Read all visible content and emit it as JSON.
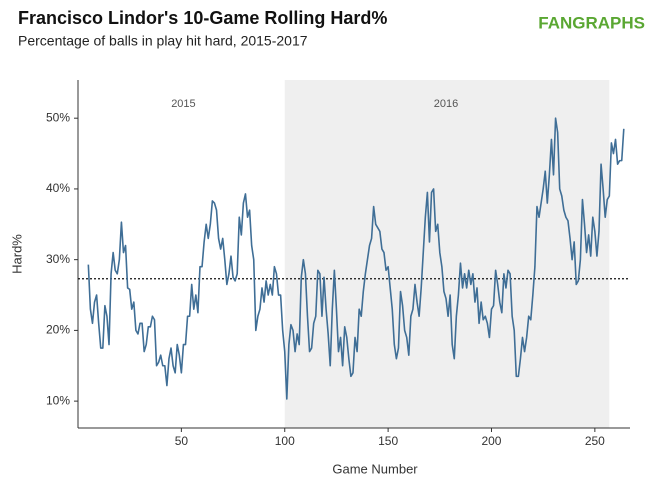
{
  "chart_data": {
    "type": "line",
    "title": "Francisco Lindor's 10-Game Rolling Hard%",
    "subtitle": "Percentage of balls in play hit hard, 2015-2017",
    "source_logo": "FANGRAPHS",
    "x_label": "Game Number",
    "y_label": "Hard%",
    "color": "#3f6e96",
    "xlim": [
      0,
      267
    ],
    "ylim": [
      6.2,
      55.4
    ],
    "xticks": [
      50,
      100,
      150,
      200,
      250
    ],
    "yticks": [
      {
        "value": 10,
        "label": "10%"
      },
      {
        "value": 20,
        "label": "20%"
      },
      {
        "value": 30,
        "label": "30%"
      },
      {
        "value": 40,
        "label": "40%"
      },
      {
        "value": 50,
        "label": "50%"
      }
    ],
    "reference_line": {
      "value": 27.3
    },
    "shaded_regions": [
      {
        "x": [
          100,
          257
        ]
      }
    ],
    "annotations": [
      {
        "text": "2015",
        "x": 51
      },
      {
        "text": "2016",
        "x": 178
      }
    ],
    "x": [
      5,
      6,
      7,
      8,
      9,
      10,
      11,
      12,
      13,
      14,
      15,
      16,
      17,
      18,
      19,
      20,
      21,
      22,
      23,
      24,
      25,
      26,
      27,
      28,
      29,
      30,
      31,
      32,
      33,
      34,
      35,
      36,
      37,
      38,
      39,
      40,
      41,
      42,
      43,
      44,
      45,
      46,
      47,
      48,
      49,
      50,
      51,
      52,
      53,
      54,
      55,
      56,
      57,
      58,
      59,
      60,
      61,
      62,
      63,
      64,
      65,
      66,
      67,
      68,
      69,
      70,
      71,
      72,
      73,
      74,
      75,
      76,
      77,
      78,
      79,
      80,
      81,
      82,
      83,
      84,
      85,
      86,
      87,
      88,
      89,
      90,
      91,
      92,
      93,
      94,
      95,
      96,
      97,
      98,
      99,
      100,
      101,
      102,
      103,
      104,
      105,
      106,
      107,
      108,
      109,
      110,
      111,
      112,
      113,
      114,
      115,
      116,
      117,
      118,
      119,
      120,
      121,
      122,
      123,
      124,
      125,
      126,
      127,
      128,
      129,
      130,
      131,
      132,
      133,
      134,
      135,
      136,
      137,
      138,
      139,
      140,
      141,
      142,
      143,
      144,
      145,
      146,
      147,
      148,
      149,
      150,
      151,
      152,
      153,
      154,
      155,
      156,
      157,
      158,
      159,
      160,
      161,
      162,
      163,
      164,
      165,
      166,
      167,
      168,
      169,
      170,
      171,
      172,
      173,
      174,
      175,
      176,
      177,
      178,
      179,
      180,
      181,
      182,
      183,
      184,
      185,
      186,
      187,
      188,
      189,
      190,
      191,
      192,
      193,
      194,
      195,
      196,
      197,
      198,
      199,
      200,
      201,
      202,
      203,
      204,
      205,
      206,
      207,
      208,
      209,
      210,
      211,
      212,
      213,
      214,
      215,
      216,
      217,
      218,
      219,
      220,
      221,
      222,
      223,
      224,
      225,
      226,
      227,
      228,
      229,
      230,
      231,
      232,
      233,
      234,
      235,
      236,
      237,
      238,
      239,
      240,
      241,
      242,
      243,
      244,
      245,
      246,
      247,
      248,
      249,
      250,
      251,
      252,
      253,
      254,
      255,
      256,
      257,
      258,
      259,
      260,
      261,
      262,
      263,
      264
    ],
    "values": [
      29.3,
      23,
      21,
      24,
      25,
      21,
      17.5,
      17.5,
      23.5,
      22,
      18,
      28,
      31,
      28.5,
      28,
      30,
      35.3,
      31,
      32,
      26,
      25.8,
      23,
      24,
      20,
      19.5,
      21,
      21,
      17,
      18,
      20.5,
      20.5,
      22,
      21.5,
      15,
      15.5,
      16.5,
      15,
      15,
      12.2,
      16,
      17.5,
      15,
      14,
      18,
      16.5,
      14,
      18,
      18,
      22,
      22,
      26.5,
      23,
      25,
      22.5,
      29,
      29,
      32.5,
      35,
      33,
      35,
      38.3,
      38,
      37,
      33,
      31.5,
      33,
      30,
      26.5,
      28,
      30.5,
      27.5,
      27,
      28,
      36,
      33.5,
      38,
      39.3,
      36,
      37,
      32,
      30,
      20,
      22,
      23,
      26,
      24,
      27,
      25,
      26.5,
      25,
      29,
      28,
      25,
      25,
      20,
      17,
      10.3,
      18,
      20.8,
      20,
      17,
      19.5,
      18,
      27.5,
      30,
      28,
      22,
      17,
      17.5,
      21,
      22,
      28.5,
      28,
      22,
      27.5,
      23,
      19.5,
      15,
      23,
      28.5,
      23,
      17,
      19,
      15,
      20.5,
      19,
      16,
      13.5,
      14,
      19,
      17,
      23,
      22,
      25.5,
      28,
      30,
      32,
      33,
      37.5,
      35,
      34.5,
      34,
      31.5,
      31,
      28.5,
      29,
      26,
      23,
      18,
      16,
      17.5,
      25.5,
      23.5,
      20,
      19,
      16.5,
      22,
      23,
      26.5,
      24,
      22,
      26,
      31,
      36,
      39.5,
      32.5,
      39.5,
      40,
      34,
      35,
      31,
      29,
      25.5,
      24.5,
      22,
      25,
      18,
      16,
      22,
      25,
      29.5,
      26,
      28,
      26,
      28.5,
      26.5,
      28,
      24,
      26,
      21,
      24,
      21.5,
      22,
      21,
      19,
      23,
      23.5,
      28.5,
      26.5,
      24,
      22.5,
      28,
      26,
      28.5,
      28,
      22,
      20,
      13.5,
      13.5,
      16,
      19,
      17,
      19,
      22,
      21.5,
      25,
      29,
      37.5,
      36,
      38,
      40,
      42.5,
      38,
      42,
      47,
      42,
      50,
      48,
      40,
      39,
      37,
      36,
      35.5,
      33,
      30,
      32.5,
      26.5,
      27,
      30,
      38.5,
      35,
      31,
      33.5,
      30.5,
      36,
      34,
      30.5,
      34,
      43.5,
      40,
      36,
      38.5,
      39,
      46.5,
      45,
      47,
      43.5,
      44,
      44,
      48.5
    ]
  }
}
